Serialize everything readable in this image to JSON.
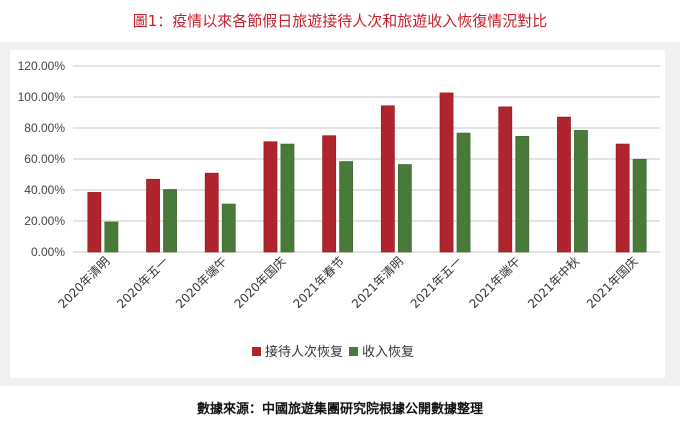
{
  "title": "圖1：疫情以來各節假日旅遊接待人次和旅遊收入恢復情況對比",
  "footer": "數據來源：中國旅遊集團研究院根據公開數據整理",
  "chart_data": {
    "type": "bar",
    "categories": [
      "2020年清明",
      "2020年五一",
      "2020年端午",
      "2020年国庆",
      "2021年春节",
      "2021年清明",
      "2021年五一",
      "2021年端午",
      "2021年中秋",
      "2021年国庆"
    ],
    "series": [
      {
        "name": "接待人次恢复",
        "color": "#b0252d",
        "values": [
          38.4,
          46.9,
          50.8,
          71.1,
          75.0,
          94.3,
          102.6,
          93.6,
          87.0,
          69.6
        ]
      },
      {
        "name": "收入恢复",
        "color": "#4a7a3a",
        "values": [
          19.3,
          40.3,
          30.9,
          69.6,
          58.3,
          56.4,
          76.7,
          74.6,
          78.4,
          59.8
        ]
      }
    ],
    "ylim": [
      0,
      120
    ],
    "yticks": [
      "0.00%",
      "20.00%",
      "40.00%",
      "60.00%",
      "80.00%",
      "100.00%",
      "120.00%"
    ],
    "ytick_values": [
      0,
      20,
      40,
      60,
      80,
      100,
      120
    ],
    "grid": true,
    "legend": "bottom"
  }
}
